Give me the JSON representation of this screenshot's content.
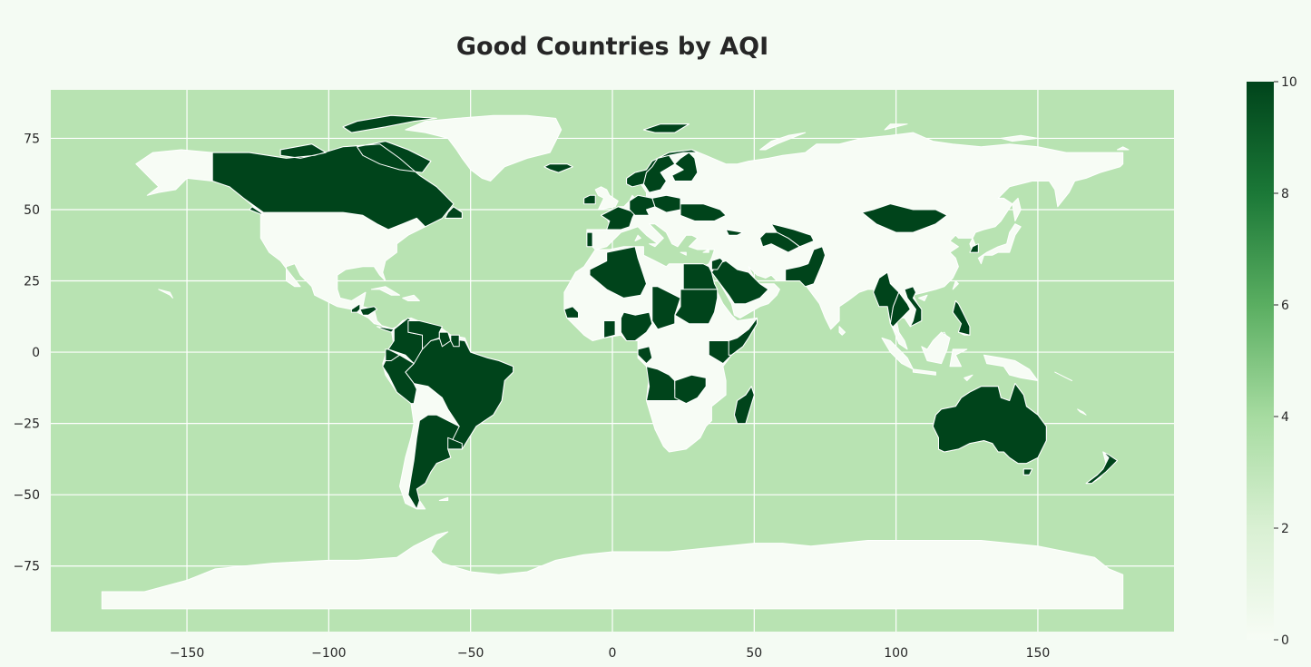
{
  "chart_data": {
    "type": "choropleth",
    "title": "Good Countries by AQI",
    "colorscale": "Greens",
    "ocean_color": "#b8e3b2",
    "no_data_color": "#f7fcf5",
    "max_color": "#00441b",
    "border_color": "#ffffff",
    "grid": true,
    "xlim": [
      -198,
      198
    ],
    "ylim": [
      -98,
      92
    ],
    "xticks": [
      -150,
      -100,
      -50,
      0,
      50,
      100,
      150
    ],
    "xtick_labels": [
      "−150",
      "−100",
      "−50",
      "0",
      "50",
      "100",
      "150"
    ],
    "yticks": [
      75,
      50,
      25,
      0,
      -25,
      -50,
      -75
    ],
    "ytick_labels": [
      "75",
      "50",
      "25",
      "0",
      "−25",
      "−50",
      "−75"
    ],
    "colorbar": {
      "range": [
        0,
        10
      ],
      "ticks": [
        0,
        2,
        4,
        6,
        8,
        10
      ],
      "tick_labels": [
        "0",
        "2",
        "4",
        "6",
        "8",
        "10"
      ]
    },
    "good_countries": [
      {
        "name": "Canada",
        "value": 10
      },
      {
        "name": "Brazil",
        "value": 10
      },
      {
        "name": "Colombia",
        "value": 10
      },
      {
        "name": "Venezuela",
        "value": 10
      },
      {
        "name": "Guyana",
        "value": 10
      },
      {
        "name": "Suriname",
        "value": 10
      },
      {
        "name": "Ecuador",
        "value": 10
      },
      {
        "name": "Peru",
        "value": 10
      },
      {
        "name": "Argentina",
        "value": 10
      },
      {
        "name": "Uruguay",
        "value": 10
      },
      {
        "name": "Guatemala",
        "value": 10
      },
      {
        "name": "Honduras",
        "value": 10
      },
      {
        "name": "Panama",
        "value": 10
      },
      {
        "name": "Iceland",
        "value": 10
      },
      {
        "name": "Ireland",
        "value": 10
      },
      {
        "name": "France",
        "value": 10
      },
      {
        "name": "Portugal",
        "value": 10
      },
      {
        "name": "Norway",
        "value": 10
      },
      {
        "name": "Sweden",
        "value": 10
      },
      {
        "name": "Finland",
        "value": 10
      },
      {
        "name": "Poland",
        "value": 10
      },
      {
        "name": "Germany",
        "value": 10
      },
      {
        "name": "Ukraine",
        "value": 10
      },
      {
        "name": "Algeria",
        "value": 10
      },
      {
        "name": "Egypt",
        "value": 10
      },
      {
        "name": "Sudan",
        "value": 10
      },
      {
        "name": "Chad",
        "value": 10
      },
      {
        "name": "Nigeria",
        "value": 10
      },
      {
        "name": "Ghana",
        "value": 10
      },
      {
        "name": "Senegal",
        "value": 10
      },
      {
        "name": "Gabon",
        "value": 10
      },
      {
        "name": "Kenya",
        "value": 10
      },
      {
        "name": "Somalia",
        "value": 10
      },
      {
        "name": "Angola",
        "value": 10
      },
      {
        "name": "Zambia",
        "value": 10
      },
      {
        "name": "Madagascar",
        "value": 10
      },
      {
        "name": "Saudi Arabia",
        "value": 10
      },
      {
        "name": "Jordan",
        "value": 10
      },
      {
        "name": "Georgia",
        "value": 10
      },
      {
        "name": "Uzbekistan",
        "value": 10
      },
      {
        "name": "Turkmenistan",
        "value": 10
      },
      {
        "name": "Pakistan",
        "value": 10
      },
      {
        "name": "Sri Lanka",
        "value": 10
      },
      {
        "name": "Myanmar",
        "value": 10
      },
      {
        "name": "Thailand",
        "value": 10
      },
      {
        "name": "Vietnam",
        "value": 10
      },
      {
        "name": "Philippines",
        "value": 10
      },
      {
        "name": "Brunei",
        "value": 10
      },
      {
        "name": "South Korea",
        "value": 10
      },
      {
        "name": "Mongolia",
        "value": 10
      },
      {
        "name": "Australia",
        "value": 10
      },
      {
        "name": "New Zealand",
        "value": 10
      }
    ]
  }
}
